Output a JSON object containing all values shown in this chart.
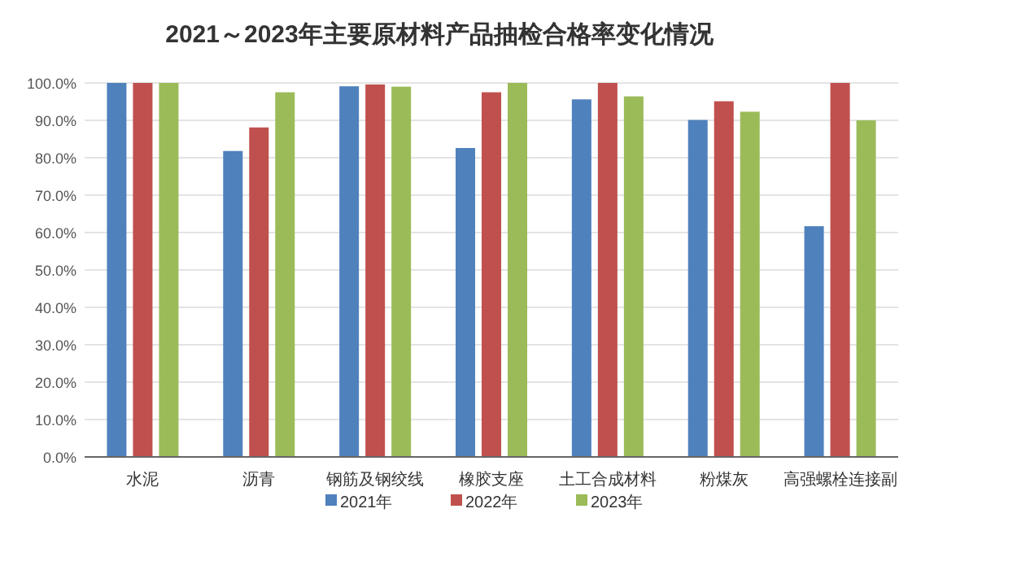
{
  "chart_data": {
    "type": "bar",
    "title": "2021～2023年主要原材料产品抽检合格率变化情况",
    "categories": [
      "水泥",
      "沥青",
      "钢筋及钢绞线",
      "橡胶支座",
      "土工合成材料",
      "粉煤灰",
      "高强螺栓连接副"
    ],
    "series": [
      {
        "name": "2021年",
        "color": "#4f81bd",
        "values": [
          100,
          81.8,
          99.1,
          82.6,
          95.6,
          90.1,
          61.7
        ]
      },
      {
        "name": "2022年",
        "color": "#c0504d",
        "values": [
          100,
          88.1,
          99.6,
          97.5,
          100,
          95.1,
          100
        ]
      },
      {
        "name": "2023年",
        "color": "#9bbb59",
        "values": [
          100,
          97.5,
          99.0,
          100,
          96.4,
          92.3,
          90
        ]
      }
    ],
    "ylim": [
      0,
      100
    ],
    "yticks": [
      {
        "value": 0,
        "label": "0.0%"
      },
      {
        "value": 10,
        "label": "10.0%"
      },
      {
        "value": 20,
        "label": "20.0%"
      },
      {
        "value": 30,
        "label": "30.0%"
      },
      {
        "value": 40,
        "label": "40.0%"
      },
      {
        "value": 50,
        "label": "50.0%"
      },
      {
        "value": 60,
        "label": "60.0%"
      },
      {
        "value": 70,
        "label": "70.0%"
      },
      {
        "value": 80,
        "label": "80.0%"
      },
      {
        "value": 90,
        "label": "90.0%"
      },
      {
        "value": 100,
        "label": "100.0%"
      }
    ],
    "grid": "y",
    "legend": "bottom"
  }
}
